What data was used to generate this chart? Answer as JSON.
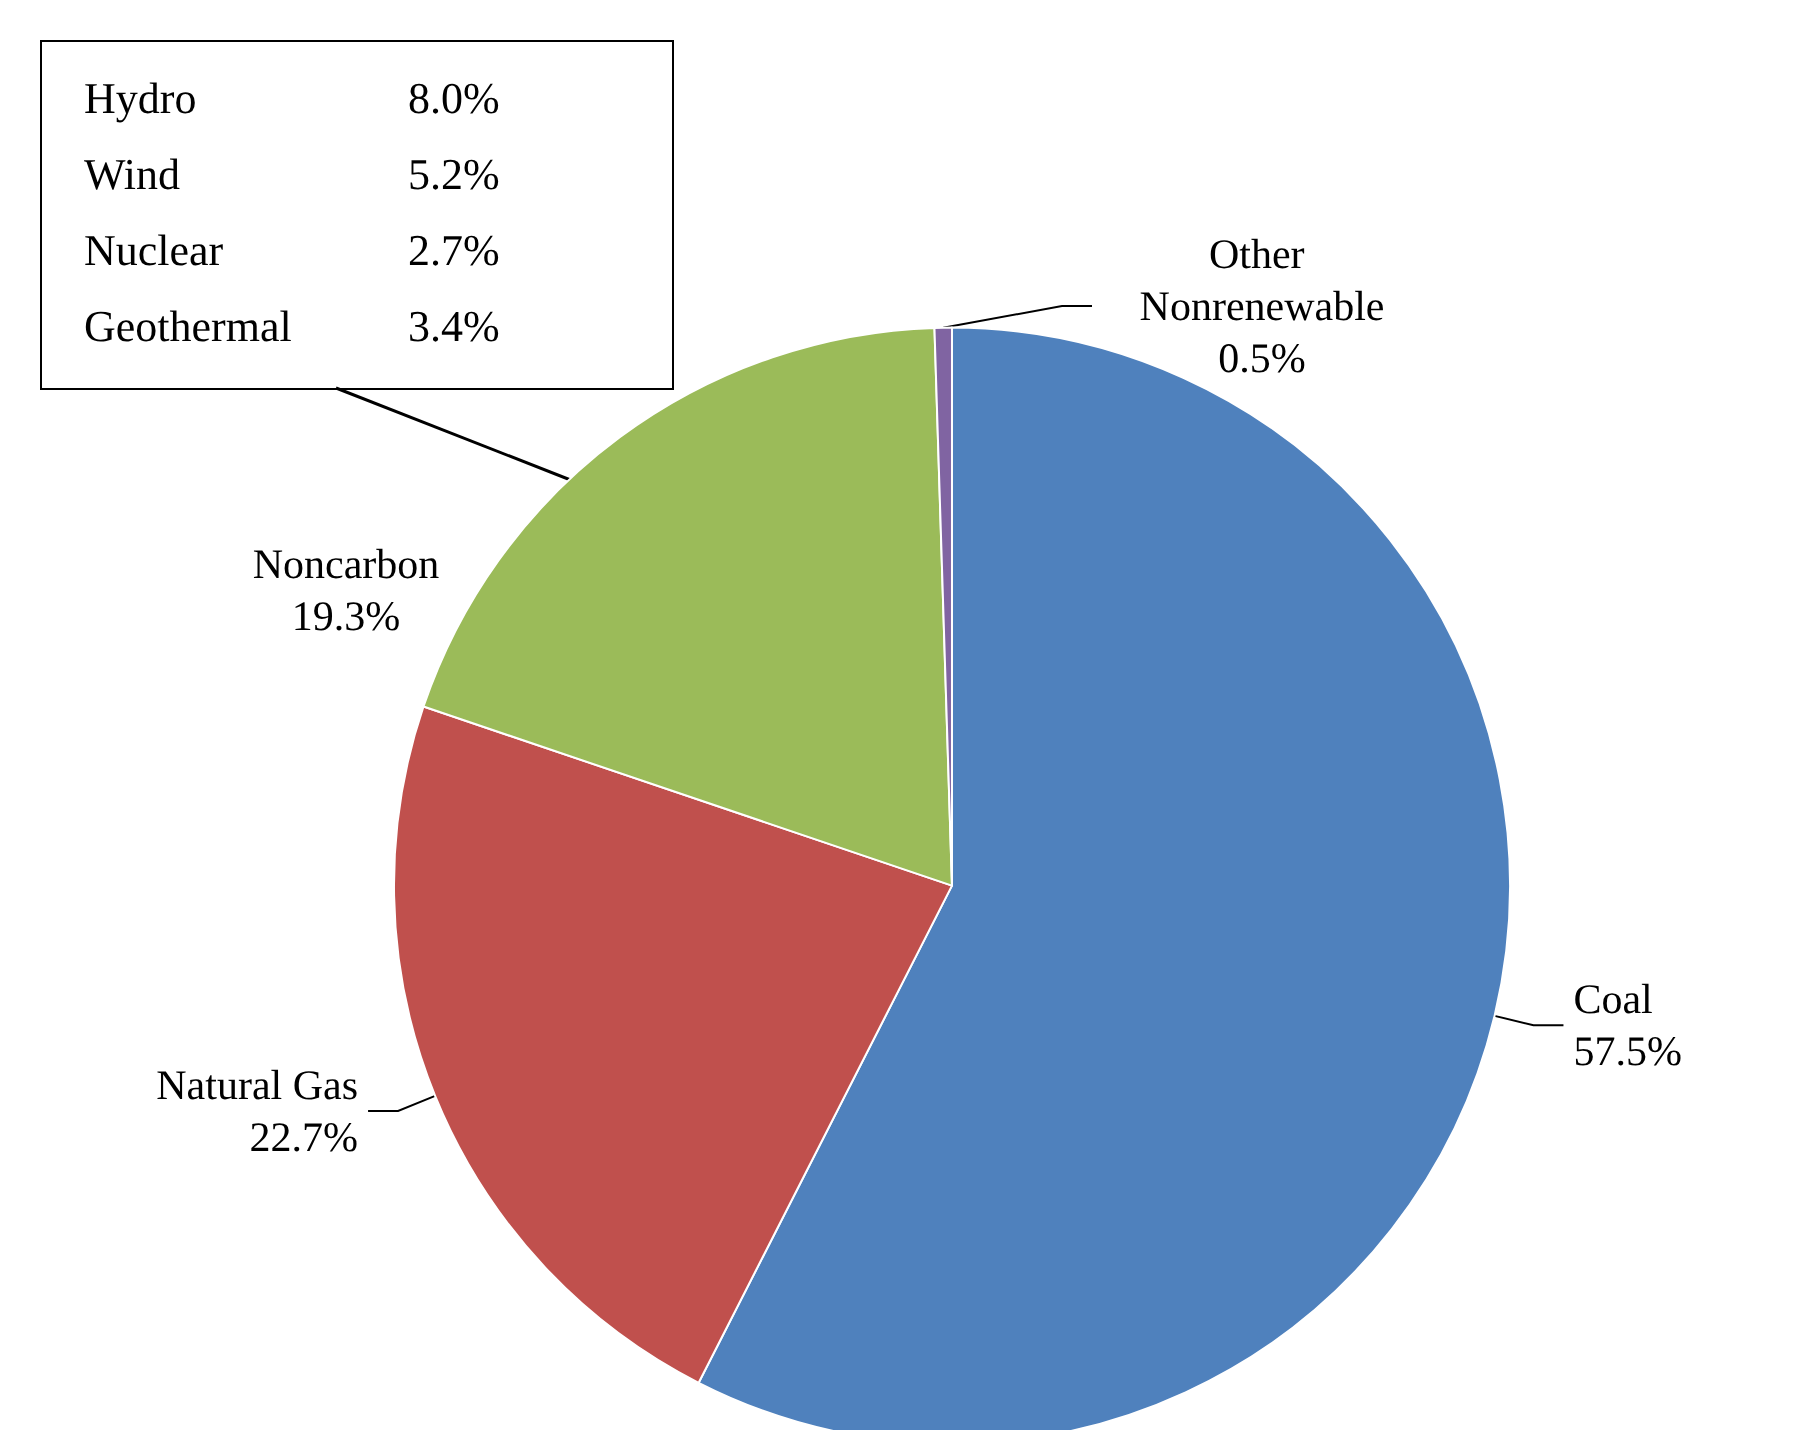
{
  "chart_data": {
    "type": "pie",
    "categories": [
      "Coal",
      "Natural Gas",
      "Noncarbon",
      "Other Nonrenewable"
    ],
    "values": [
      57.5,
      22.7,
      19.3,
      0.5
    ],
    "colors": [
      "#4f81bd",
      "#c0504d",
      "#9bbb59",
      "#8064a2"
    ],
    "value_labels": [
      "57.5%",
      "22.7%",
      "19.3%",
      "0.5%"
    ],
    "legend": false,
    "annotations": [
      "Hydro 8.0%",
      "Wind 5.2%",
      "Nuclear 2.7%",
      "Geothermal 3.4%"
    ]
  }
}
